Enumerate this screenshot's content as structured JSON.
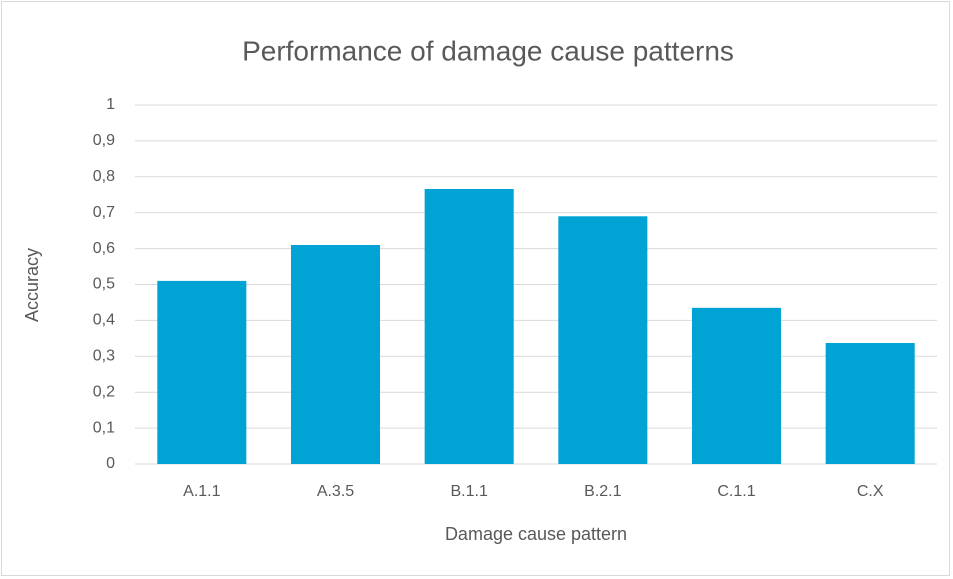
{
  "chart_data": {
    "type": "bar",
    "title": "Performance of damage cause patterns",
    "x_label": "Damage cause pattern",
    "y_label": "Accuracy",
    "categories": [
      "A.1.1",
      "A.3.5",
      "B.1.1",
      "B.2.1",
      "C.1.1",
      "C.X"
    ],
    "values": [
      0.51,
      0.61,
      0.766,
      0.69,
      0.435,
      0.337
    ],
    "color": "#00a3d4",
    "ylim": [
      0,
      1
    ],
    "yticks": [
      0,
      {
        "value": 0.1,
        "label": "0,1"
      },
      {
        "value": 0.2,
        "label": "0,2"
      },
      {
        "value": 0.3,
        "label": "0,3"
      },
      {
        "value": 0.4,
        "label": "0,4"
      },
      {
        "value": 0.5,
        "label": "0,5"
      },
      {
        "value": 0.6,
        "label": "0,6"
      },
      {
        "value": 0.7,
        "label": "0,7"
      },
      {
        "value": 0.8,
        "label": "0,8"
      },
      {
        "value": 0.9,
        "label": "0,9"
      },
      1
    ],
    "grid": true
  }
}
